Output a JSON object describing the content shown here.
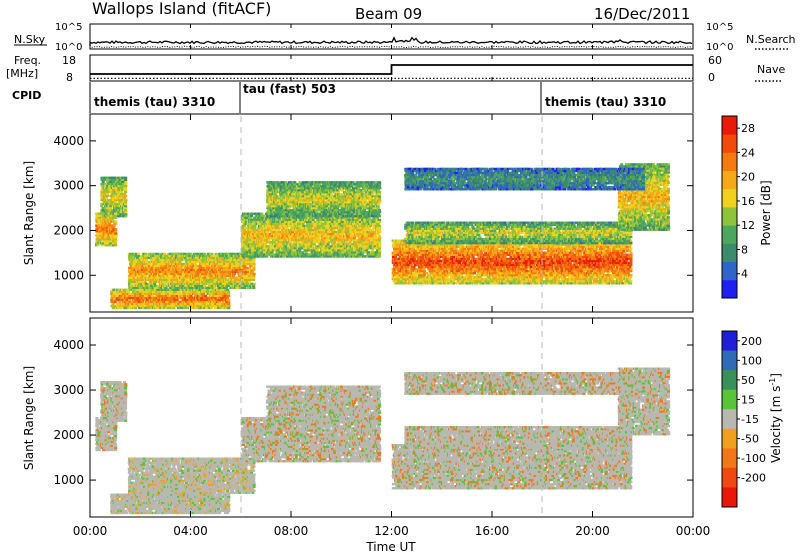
{
  "header": {
    "site": "Wallops Island (fitACF)",
    "beam": "Beam 09",
    "date": "16/Dec/2011"
  },
  "strips": {
    "nsky": {
      "label": "N.Sky",
      "ticks": [
        "10^5",
        "10^0"
      ]
    },
    "nsearch": {
      "label": "N.Search",
      "ticks": [
        "10^5",
        "10^0"
      ]
    },
    "freq": {
      "label_line1": "Freq.",
      "label_line2": "[MHz]",
      "ticks": [
        "18",
        "8"
      ]
    },
    "nave": {
      "label": "Nave",
      "ticks": [
        "60",
        "0"
      ]
    },
    "cpid": {
      "label": "CPID",
      "segments": [
        "themis (tau) 3310",
        "tau (fast) 503",
        "themis (tau) 3310"
      ]
    }
  },
  "colors": {
    "power": [
      "#1f1ff2",
      "#2f64c8",
      "#3d8a6c",
      "#4da65e",
      "#8cc43c",
      "#f0d21e",
      "#f5a818",
      "#f57a10",
      "#f24a0a",
      "#e81a08"
    ],
    "velocity": [
      "#1f1fd8",
      "#2f6ab8",
      "#3b8f5a",
      "#58c43a",
      "#b8b8b0",
      "#f0a020",
      "#f07818",
      "#f04810",
      "#e81808"
    ]
  },
  "chart_data": [
    {
      "type": "line",
      "panel": "timeseries",
      "series": [
        {
          "name": "N.Sky",
          "values": []
        },
        {
          "name": "N.Search",
          "values": []
        },
        {
          "name": "Freq.",
          "x": [
            "00:00",
            "12:00",
            "12:00",
            "24:00"
          ],
          "values": [
            10.5,
            10.5,
            15.0,
            15.0
          ]
        },
        {
          "name": "Nave",
          "x": [
            "00:00",
            "24:00"
          ],
          "values": [
            5,
            5
          ]
        }
      ]
    },
    {
      "type": "heatmap",
      "panel": "power",
      "ylabel": "Slant Range [km]",
      "yticks": [
        "1000",
        "2000",
        "3000",
        "4000"
      ],
      "ylim": [
        180,
        4600
      ],
      "colorbar": {
        "label": "Power [dB]",
        "ticks": [
          "4",
          "8",
          "12",
          "16",
          "20",
          "24",
          "28"
        ],
        "range": [
          0,
          30
        ]
      },
      "echo_bands": [
        {
          "t0": 0.4,
          "t1": 1.4,
          "r0": 2300,
          "r1": 3200,
          "level": 0.6
        },
        {
          "t0": 0.2,
          "t1": 1.0,
          "r0": 1650,
          "r1": 2400,
          "level": 0.8
        },
        {
          "t0": 0.8,
          "t1": 5.5,
          "r0": 250,
          "r1": 700,
          "level": 0.85
        },
        {
          "t0": 1.5,
          "t1": 6.5,
          "r0": 700,
          "r1": 1500,
          "level": 0.75
        },
        {
          "t0": 6.0,
          "t1": 11.5,
          "r0": 1400,
          "r1": 2400,
          "level": 0.65
        },
        {
          "t0": 7.0,
          "t1": 11.5,
          "r0": 2300,
          "r1": 3100,
          "level": 0.55
        },
        {
          "t0": 12.0,
          "t1": 21.5,
          "r0": 800,
          "r1": 1800,
          "level": 0.9
        },
        {
          "t0": 12.5,
          "t1": 21.5,
          "r0": 1700,
          "r1": 2200,
          "level": 0.55
        },
        {
          "t0": 21.0,
          "t1": 23.0,
          "r0": 2000,
          "r1": 3500,
          "level": 0.65
        },
        {
          "t0": 12.5,
          "t1": 22.0,
          "r0": 2900,
          "r1": 3400,
          "level": 0.3
        }
      ]
    },
    {
      "type": "heatmap",
      "panel": "velocity",
      "ylabel": "Slant Range [km]",
      "yticks": [
        "1000",
        "2000",
        "3000",
        "4000"
      ],
      "ylim": [
        180,
        4600
      ],
      "colorbar": {
        "label": "Velocity [m s^-1]",
        "ticks": [
          "200",
          "100",
          "50",
          "15",
          "-15",
          "-50",
          "-100",
          "-200"
        ],
        "range": [
          -250,
          250
        ]
      }
    }
  ],
  "xaxis": {
    "label": "Time UT",
    "ticks": [
      "00:00",
      "04:00",
      "08:00",
      "12:00",
      "16:00",
      "20:00",
      "00:00"
    ],
    "range_hours": [
      0,
      24
    ]
  }
}
